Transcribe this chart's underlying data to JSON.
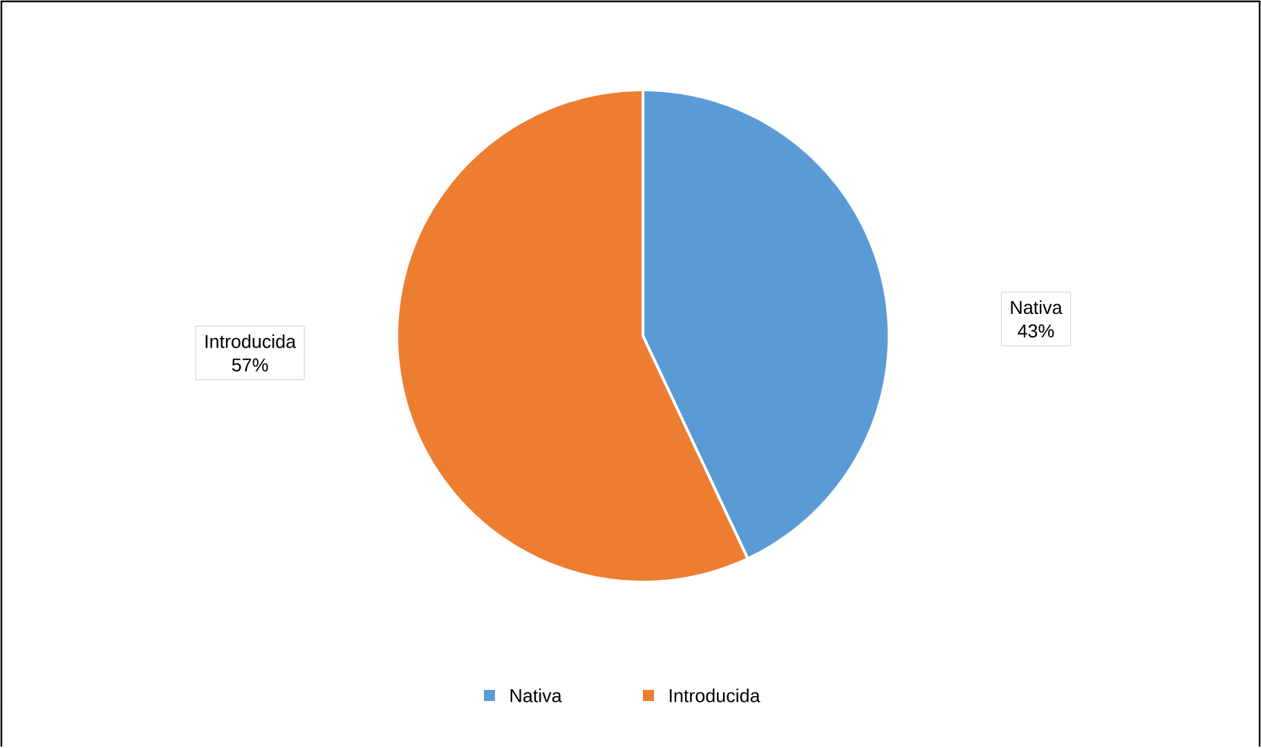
{
  "chart_data": {
    "type": "pie",
    "categories": [
      "Nativa",
      "Introducida"
    ],
    "values": [
      43,
      57
    ],
    "colors": [
      "#5b9bd5",
      "#ed7d31"
    ],
    "value_labels": [
      "43%",
      "57%"
    ],
    "legend": "bottom"
  }
}
